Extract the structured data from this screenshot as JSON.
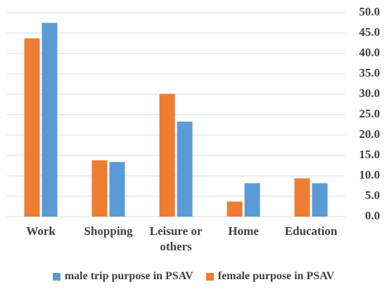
{
  "chart_data": {
    "type": "bar",
    "categories": [
      "Work",
      "Shopping",
      "Leisure or others",
      "Home",
      "Education"
    ],
    "series": [
      {
        "name": "male trip purpose in PSAV",
        "color": "#5b9bd5",
        "values": [
          47.5,
          13.4,
          23.3,
          8.2,
          8.2
        ]
      },
      {
        "name": "female purpose in PSAV",
        "color": "#ed7d31",
        "values": [
          43.7,
          13.8,
          30.1,
          3.7,
          9.4
        ]
      }
    ],
    "ylim": [
      0,
      50
    ],
    "yticks": [
      {
        "value": 0,
        "label": "0.0"
      },
      {
        "value": 5,
        "label": "5.0"
      },
      {
        "value": 10,
        "label": "10.0"
      },
      {
        "value": 15,
        "label": "15.0"
      },
      {
        "value": 20,
        "label": "20.0"
      },
      {
        "value": 25,
        "label": "25.0"
      },
      {
        "value": 30,
        "label": "30.0"
      },
      {
        "value": 35,
        "label": "35.0"
      },
      {
        "value": 40,
        "label": "40.0"
      },
      {
        "value": 45,
        "label": "45.0"
      },
      {
        "value": 50,
        "label": "50.0"
      }
    ],
    "grid": true,
    "legend": "bottom"
  }
}
